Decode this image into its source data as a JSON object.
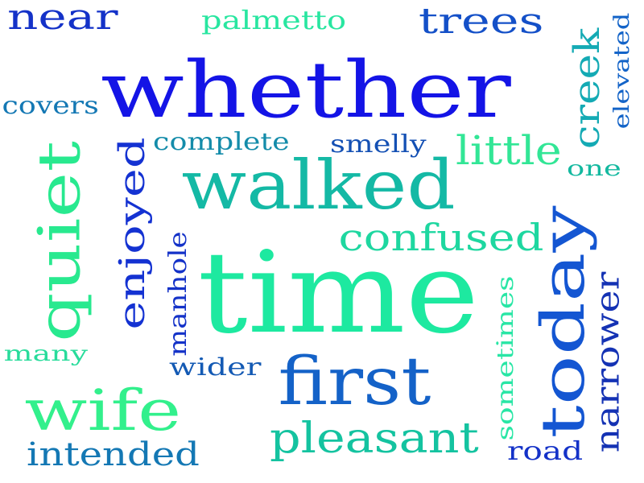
{
  "words": [
    {
      "text": "whether",
      "color": "#1414e6",
      "orient": "horizontal"
    },
    {
      "text": "time",
      "color": "#1de9a0",
      "orient": "horizontal"
    },
    {
      "text": "walked",
      "color": "#14b9a5",
      "orient": "horizontal"
    },
    {
      "text": "quiet",
      "color": "#28e98f",
      "orient": "vertical"
    },
    {
      "text": "first",
      "color": "#1462c8",
      "orient": "horizontal"
    },
    {
      "text": "today",
      "color": "#1456d2",
      "orient": "vertical"
    },
    {
      "text": "wife",
      "color": "#32f08c",
      "orient": "horizontal"
    },
    {
      "text": "pleasant",
      "color": "#14c3a0",
      "orient": "horizontal"
    },
    {
      "text": "confused",
      "color": "#1ed7a0",
      "orient": "horizontal"
    },
    {
      "text": "little",
      "color": "#32e696",
      "orient": "horizontal"
    },
    {
      "text": "creek",
      "color": "#14aab4",
      "orient": "vertical"
    },
    {
      "text": "enjoyed",
      "color": "#1432d2",
      "orient": "vertical"
    },
    {
      "text": "near",
      "color": "#1432c8",
      "orient": "horizontal"
    },
    {
      "text": "trees",
      "color": "#1450c8",
      "orient": "horizontal"
    },
    {
      "text": "intended",
      "color": "#1478b4",
      "orient": "horizontal"
    },
    {
      "text": "narrower",
      "color": "#1432b4",
      "orient": "vertical"
    },
    {
      "text": "palmetto",
      "color": "#28e6a0",
      "orient": "horizontal"
    },
    {
      "text": "complete",
      "color": "#148caa",
      "orient": "horizontal"
    },
    {
      "text": "smelly",
      "color": "#1450b4",
      "orient": "horizontal"
    },
    {
      "text": "covers",
      "color": "#1478b4",
      "orient": "horizontal"
    },
    {
      "text": "manhole",
      "color": "#1432c8",
      "orient": "vertical"
    },
    {
      "text": "wider",
      "color": "#145ab4",
      "orient": "horizontal"
    },
    {
      "text": "sometimes",
      "color": "#28e6a5",
      "orient": "vertical"
    },
    {
      "text": "road",
      "color": "#1432c8",
      "orient": "horizontal"
    },
    {
      "text": "elevated",
      "color": "#1464c8",
      "orient": "vertical"
    },
    {
      "text": "many",
      "color": "#28dc9b",
      "orient": "horizontal"
    },
    {
      "text": "one",
      "color": "#14b9a0",
      "orient": "horizontal"
    }
  ]
}
